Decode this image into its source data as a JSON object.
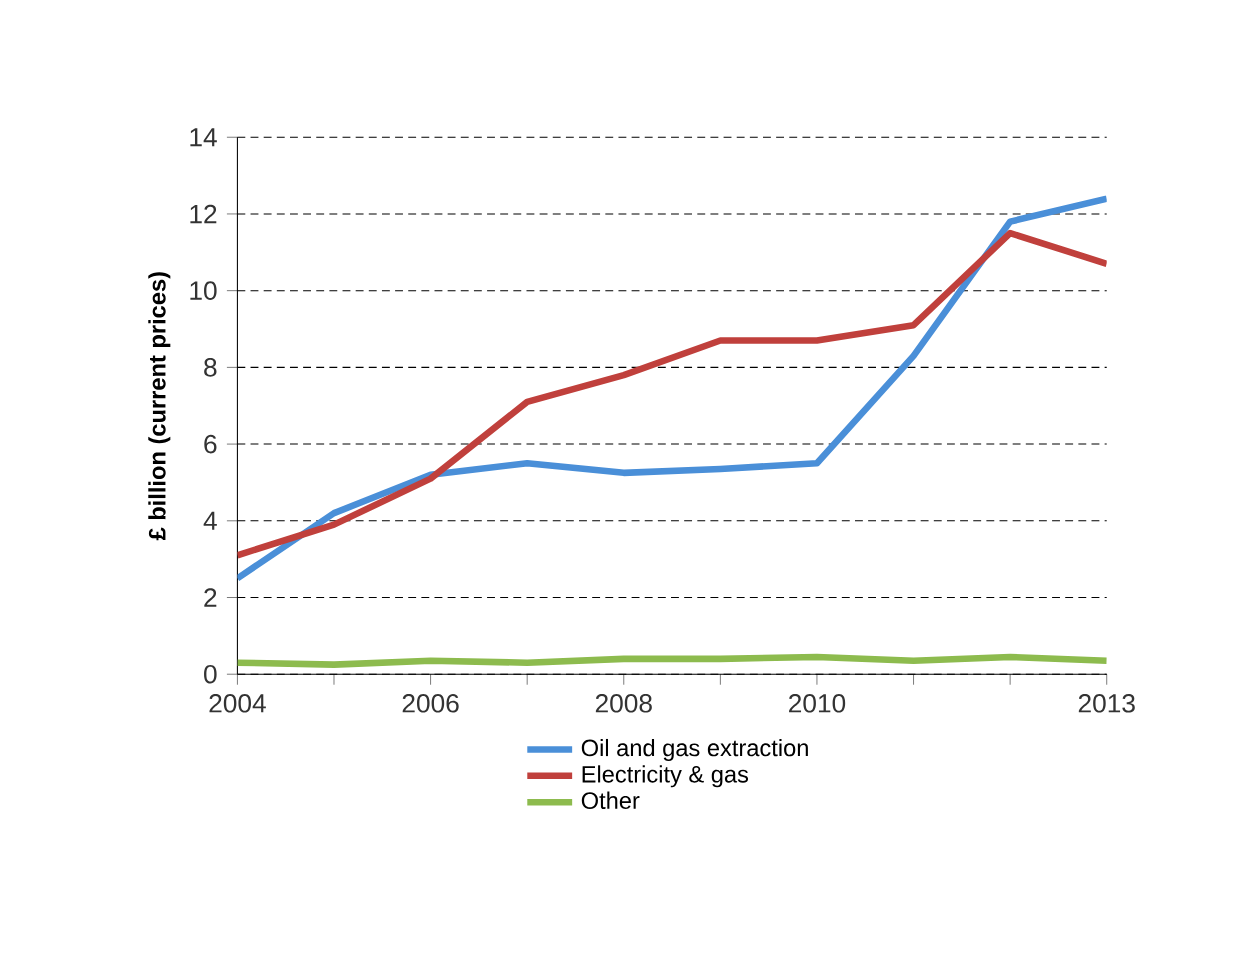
{
  "chart_data": {
    "type": "line",
    "ylabel": "£ billion  (current prices)",
    "x": [
      2004,
      2005,
      2006,
      2007,
      2008,
      2009,
      2010,
      2011,
      2012,
      2013
    ],
    "xlim": [
      2004,
      2013
    ],
    "xticks": [
      2004,
      {
        "value": 2005,
        "label": null
      },
      2006,
      {
        "value": 2007,
        "label": null
      },
      2008,
      {
        "value": 2009,
        "label": null
      },
      2010,
      {
        "value": 2011,
        "label": null
      },
      {
        "value": 2012,
        "label": null
      },
      2013
    ],
    "ylim": [
      0,
      14
    ],
    "yticks": [
      0,
      2,
      4,
      6,
      8,
      10,
      12,
      14
    ],
    "grid": "y",
    "legend": "bottom",
    "series": [
      {
        "name": "Oil and gas extraction",
        "color": "#4a8fd8",
        "values": [
          2.5,
          4.2,
          5.2,
          5.5,
          5.25,
          5.35,
          5.5,
          8.3,
          11.8,
          12.4
        ]
      },
      {
        "name": "Electricity & gas",
        "color": "#c0403c",
        "values": [
          3.1,
          3.9,
          5.1,
          7.1,
          7.8,
          8.7,
          8.7,
          9.1,
          11.5,
          10.7
        ]
      },
      {
        "name": "Other",
        "color": "#8dbb4e",
        "values": [
          0.3,
          0.25,
          0.35,
          0.3,
          0.4,
          0.4,
          0.45,
          0.35,
          0.45,
          0.35
        ]
      }
    ]
  }
}
